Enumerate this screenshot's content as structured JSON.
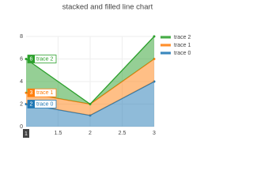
{
  "chart_data": {
    "type": "stacked-area",
    "title": "stacked and filled line chart",
    "x": [
      1,
      2,
      3
    ],
    "series": [
      {
        "name": "trace 0",
        "color": "#1f77b4",
        "values": [
          2,
          1,
          4
        ]
      },
      {
        "name": "trace 1",
        "color": "#ff7f0e",
        "values": [
          1,
          1,
          2
        ]
      },
      {
        "name": "trace 2",
        "color": "#2ca02c",
        "values": [
          3,
          0,
          2
        ]
      }
    ],
    "xlim": [
      1,
      3
    ],
    "xticks": [
      1.5,
      2,
      2.5,
      3
    ],
    "ylim": [
      0,
      8
    ],
    "yticks": [
      0,
      2,
      4,
      6,
      8
    ],
    "grid": true,
    "legend": "top-right",
    "hover": {
      "x": 1,
      "labels": [
        "2",
        "3",
        "6"
      ]
    }
  }
}
